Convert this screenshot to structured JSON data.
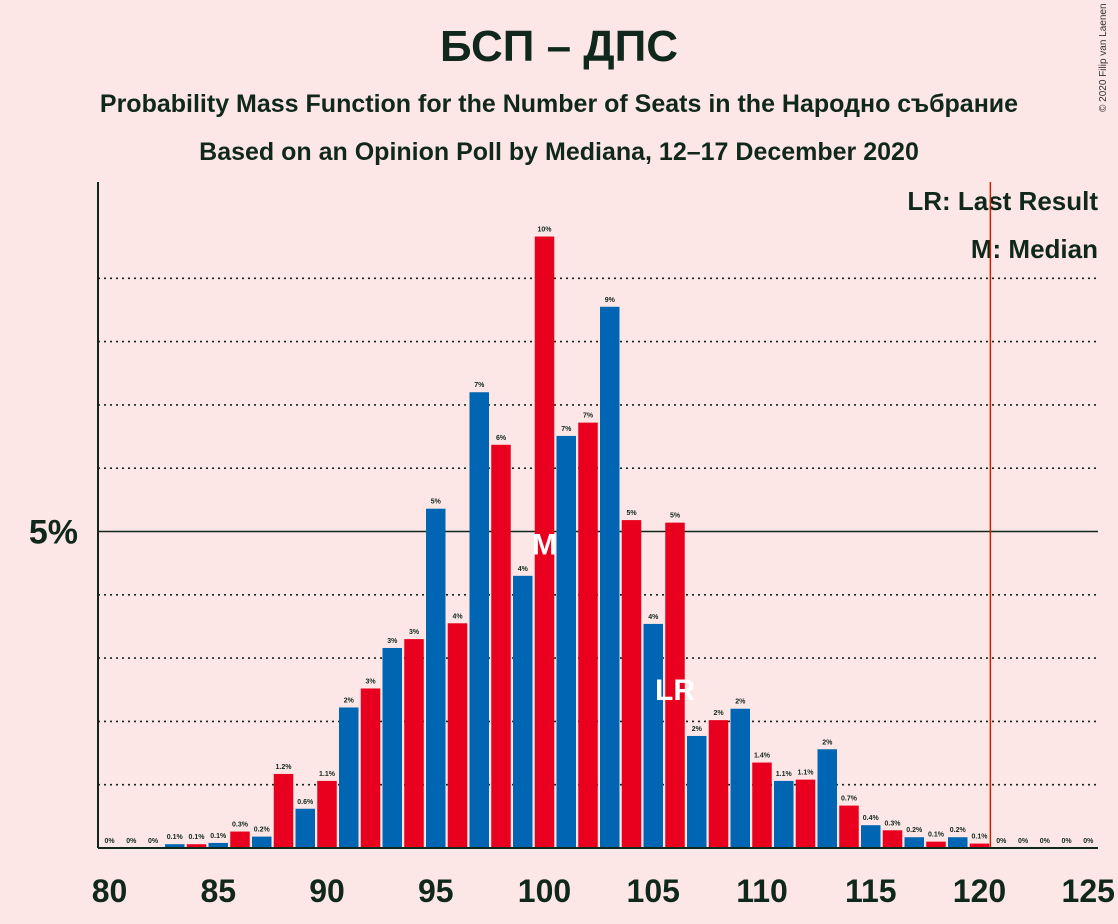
{
  "header": {
    "title": "БСП – ДПС",
    "subtitle": "Probability Mass Function for the Number of Seats in the Народно събрание",
    "source": "Based on an Opinion Poll by Mediana, 12–17 December 2020",
    "copyright": "© 2020 Filip van Laenen"
  },
  "legend": {
    "last_result": "LR: Last Result",
    "median": "M: Median"
  },
  "colors": {
    "background": "#fde6e6",
    "red": "#e8001e",
    "blue": "#0066b3",
    "text": "#10281c",
    "last_result_line": "#cc2200"
  },
  "chart_data": {
    "type": "bar",
    "title": "БСП – ДПС",
    "x": [
      80,
      81,
      82,
      83,
      84,
      85,
      86,
      87,
      88,
      89,
      90,
      91,
      92,
      93,
      94,
      95,
      96,
      97,
      98,
      99,
      100,
      101,
      102,
      103,
      104,
      105,
      106,
      107,
      108,
      109,
      110,
      111,
      112,
      113,
      114,
      115,
      116,
      117,
      118,
      119,
      120,
      121,
      122,
      123,
      124,
      125
    ],
    "values": [
      0,
      0,
      0,
      0.06,
      0.06,
      0.08,
      0.26,
      0.18,
      1.17,
      0.62,
      1.06,
      2.22,
      2.52,
      3.16,
      3.3,
      5.36,
      3.55,
      7.2,
      6.37,
      4.3,
      9.66,
      6.51,
      6.72,
      8.55,
      5.18,
      3.54,
      5.14,
      1.77,
      2.02,
      2.2,
      1.35,
      1.06,
      1.08,
      1.56,
      0.67,
      0.36,
      0.28,
      0.17,
      0.1,
      0.17,
      0.07,
      0,
      0,
      0,
      0,
      0
    ],
    "value_labels": [
      "0%",
      "0%",
      "0%",
      "0.1%",
      "0.1%",
      "0.1%",
      "0.3%",
      "0.2%",
      "1.2%",
      "0.6%",
      "1.1%",
      "2%",
      "3%",
      "3%",
      "3%",
      "5%",
      "4%",
      "7%",
      "6%",
      "4%",
      "10%",
      "7%",
      "7%",
      "9%",
      "5%",
      "4%",
      "5%",
      "2%",
      "2%",
      "2%",
      "1.4%",
      "1.1%",
      "1.1%",
      "2%",
      "0.7%",
      "0.4%",
      "0.3%",
      "0.2%",
      "0.1%",
      "0.2%",
      "0.1%",
      "0%",
      "0%",
      "0%",
      "0%",
      "0%"
    ],
    "x_ticks": [
      80,
      85,
      90,
      95,
      100,
      105,
      110,
      115,
      120,
      125
    ],
    "y_tick_label": "5%",
    "y_tick_value": 5,
    "ylim": [
      0,
      10.5
    ],
    "gridline_values": [
      1,
      2,
      3,
      4,
      6,
      7,
      8,
      9
    ],
    "median_seat": 100,
    "median_marker": "M",
    "last_result_seat": 106,
    "last_result_marker": "LR",
    "majority_threshold": 120.5
  }
}
